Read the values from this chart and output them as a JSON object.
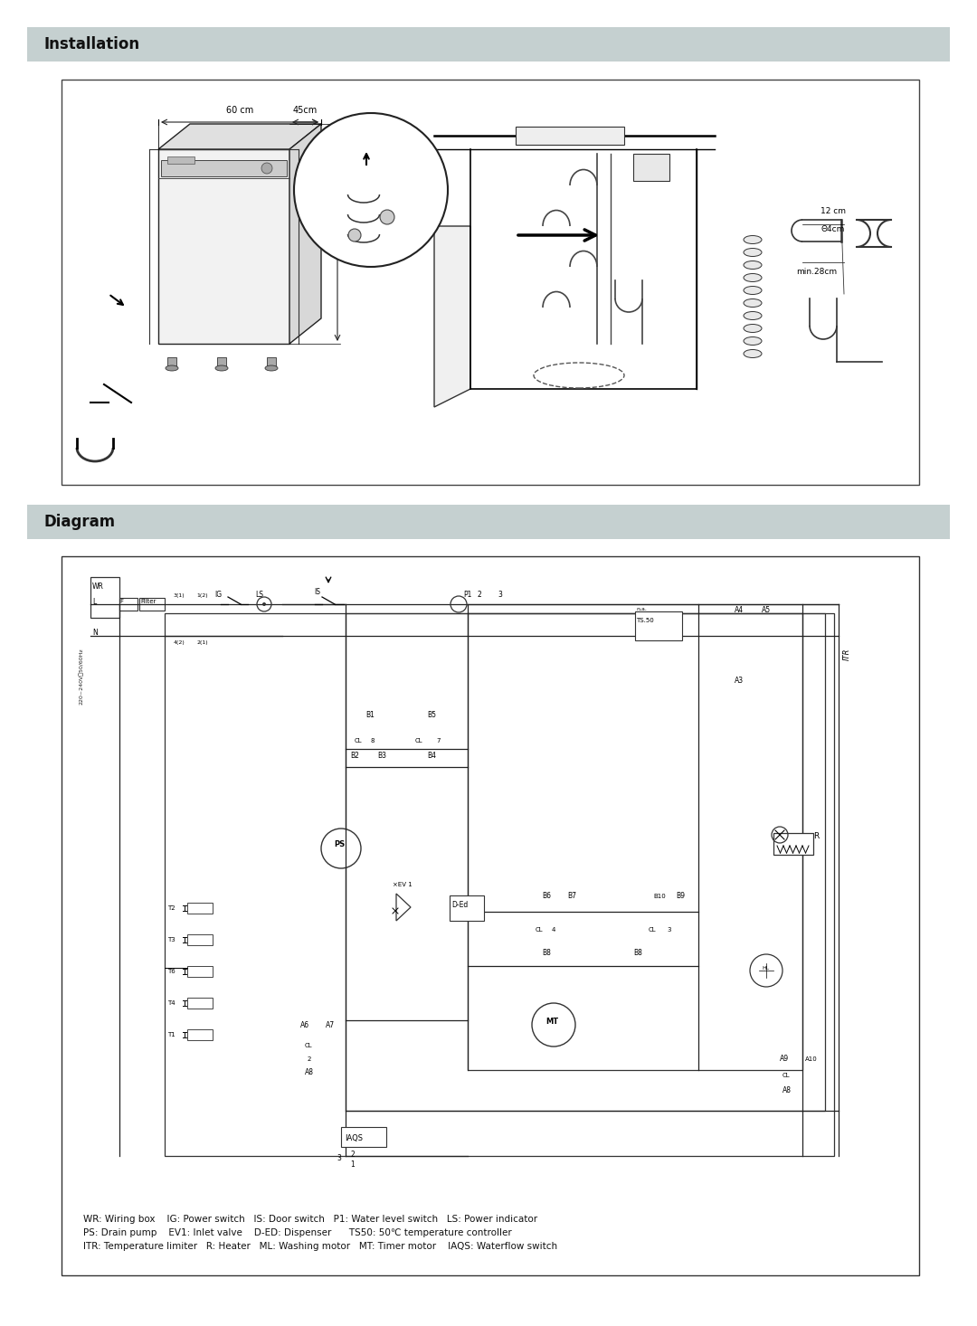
{
  "page_bg": "#ffffff",
  "header_bg": "#c5d0d0",
  "section1_title": "Installation",
  "section2_title": "Diagram",
  "title_fontsize": 12,
  "header_text_color": "#000000",
  "legend_text1": "WR: Wiring box    IG: Power switch   IS: Door switch   P1: Water level switch   LS: Power indicator",
  "legend_text2": "PS: Drain pump    EV1: Inlet valve    D-ED: Dispenser      TS50: 50℃ temperature controller",
  "legend_text3": "ITR: Temperature limiter   R: Heater   ML: Washing motor   MT: Timer motor    IAQS: Waterflow switch",
  "page_width": 10.8,
  "page_height": 14.66
}
